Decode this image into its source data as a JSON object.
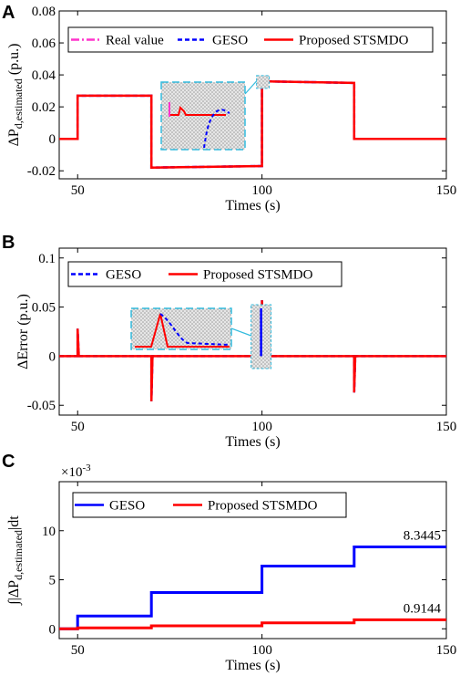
{
  "chart_data": [
    {
      "type": "line",
      "panel": "A",
      "xlabel": "Times (s)",
      "ylabel": "ΔP_d,estimated (p.u.)",
      "xlim": [
        45,
        150
      ],
      "ylim": [
        -0.025,
        0.08
      ],
      "xticks": [
        "50",
        "100",
        "150"
      ],
      "yticks": [
        "-0.02",
        "0",
        "0.02",
        "0.04",
        "0.06",
        "0.08"
      ],
      "legend_position": "top",
      "series": [
        {
          "name": "Real value",
          "color": "#ff33cc",
          "style": "dash-dot",
          "x": [
            45,
            50,
            50,
            70,
            70,
            100,
            100,
            125,
            125,
            150
          ],
          "y": [
            0,
            0,
            0.027,
            0.027,
            -0.018,
            -0.017,
            0.036,
            0.035,
            0,
            0
          ]
        },
        {
          "name": "GESO",
          "color": "#0000ff",
          "style": "dashed",
          "x": [
            45,
            50,
            50,
            70,
            70,
            100,
            100,
            125,
            125,
            150
          ],
          "y": [
            0,
            0,
            0.027,
            0.027,
            -0.018,
            -0.017,
            0.036,
            0.035,
            0,
            0
          ]
        },
        {
          "name": "Proposed STSMDO",
          "color": "#ff0000",
          "style": "solid",
          "x": [
            45,
            50,
            50,
            70,
            70,
            100,
            100,
            125,
            125,
            150
          ],
          "y": [
            0,
            0,
            0.027,
            0.027,
            -0.018,
            -0.017,
            0.036,
            0.035,
            0,
            0
          ]
        }
      ]
    },
    {
      "type": "line",
      "panel": "B",
      "xlabel": "Times (s)",
      "ylabel": "ΔError (p.u.)",
      "xlim": [
        45,
        150
      ],
      "ylim": [
        -0.06,
        0.11
      ],
      "xticks": [
        "50",
        "100",
        "150"
      ],
      "yticks": [
        "-0.05",
        "0",
        "0.05",
        "0.1"
      ],
      "legend_position": "top",
      "series": [
        {
          "name": "GESO",
          "color": "#0000ff",
          "style": "dashed",
          "x": [
            45,
            50,
            50,
            50.3,
            70,
            70,
            70.3,
            100,
            100,
            100.3,
            125,
            125,
            125.3,
            150
          ],
          "y": [
            0,
            0,
            0.028,
            0,
            0,
            -0.046,
            0,
            0,
            0.057,
            0,
            0,
            -0.037,
            0,
            0
          ]
        },
        {
          "name": "Proposed STSMDO",
          "color": "#ff0000",
          "style": "solid",
          "x": [
            45,
            50,
            50,
            50.3,
            70,
            70,
            70.3,
            100,
            100,
            100.3,
            125,
            125,
            125.3,
            150
          ],
          "y": [
            0,
            0,
            0.028,
            0,
            0,
            -0.046,
            0,
            0,
            0.057,
            0,
            0,
            -0.037,
            0,
            0
          ]
        }
      ]
    },
    {
      "type": "line",
      "panel": "C",
      "xlabel": "Times (s)",
      "ylabel": "∫|ΔP_d,estimated|dt",
      "scale_label": "×10-3",
      "xlim": [
        45,
        150
      ],
      "ylim": [
        -1,
        15
      ],
      "xticks": [
        "50",
        "100",
        "150"
      ],
      "yticks": [
        "0",
        "5",
        "10"
      ],
      "legend_position": "top",
      "annotations": [
        "8.3445",
        "0.9144"
      ],
      "series": [
        {
          "name": "GESO",
          "color": "#0000ff",
          "style": "solid",
          "x": [
            45,
            50,
            50,
            70,
            70,
            100,
            100,
            125,
            125,
            150
          ],
          "y": [
            0,
            0,
            1.3,
            1.3,
            3.7,
            3.7,
            6.4,
            6.4,
            8.3445,
            8.3445
          ]
        },
        {
          "name": "Proposed STSMDO",
          "color": "#ff0000",
          "style": "solid",
          "x": [
            45,
            50,
            50,
            70,
            70,
            100,
            100,
            125,
            125,
            150
          ],
          "y": [
            0,
            0,
            0.1,
            0.1,
            0.3,
            0.3,
            0.6,
            0.6,
            0.9144,
            0.9144
          ]
        }
      ]
    }
  ]
}
